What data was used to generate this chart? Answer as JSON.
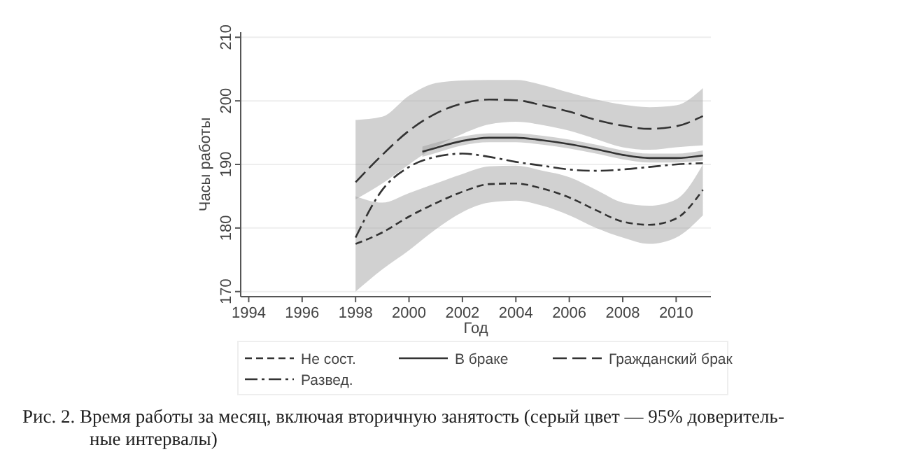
{
  "chart_data": {
    "type": "line",
    "xlabel": "Год",
    "ylabel": "Часы работы",
    "xlim": [
      1993.7,
      2011.3
    ],
    "ylim": [
      169.2,
      210.8
    ],
    "xticks": [
      1994,
      1996,
      1998,
      2000,
      2002,
      2004,
      2006,
      2008,
      2010
    ],
    "yticks": [
      170,
      180,
      190,
      200,
      210
    ],
    "grid": "y",
    "legend": "bottom",
    "marker": "none",
    "series": [
      {
        "name": "Не сост.",
        "color": "#333333",
        "line_style": "dashed",
        "x": [
          1998,
          1999,
          2000,
          2001,
          2002,
          2003,
          2004,
          2005,
          2006,
          2007,
          2008,
          2009,
          2010,
          2011
        ],
        "values": [
          177.5,
          179.3,
          181.8,
          183.9,
          185.7,
          186.9,
          187,
          186.2,
          184.8,
          182.8,
          181,
          180.5,
          181.5,
          186
        ],
        "lower": [
          170,
          173.5,
          176.5,
          179.8,
          182.5,
          184,
          184.3,
          183.5,
          182,
          180,
          178.5,
          177.5,
          178.5,
          182
        ],
        "upper": [
          185,
          184,
          185.5,
          187,
          188.5,
          189.7,
          189.8,
          189,
          188,
          186,
          184,
          183.5,
          184.5,
          190
        ]
      },
      {
        "name": "В браке",
        "color": "#333333",
        "line_style": "solid",
        "x": [
          2000.5,
          2001,
          2002,
          2003,
          2004,
          2005,
          2006,
          2007,
          2008,
          2009,
          2010,
          2011
        ],
        "values": [
          192,
          192.6,
          193.7,
          194.2,
          194.2,
          193.8,
          193.2,
          192.4,
          191.5,
          191,
          191,
          191.4
        ],
        "lower": [
          191.2,
          191.8,
          193,
          193.5,
          193.5,
          193.1,
          192.5,
          191.7,
          190.8,
          190.3,
          190.3,
          190.6
        ],
        "upper": [
          192.8,
          193.4,
          194.4,
          194.9,
          194.9,
          194.5,
          193.9,
          193.1,
          192.2,
          191.7,
          191.7,
          192.2
        ]
      },
      {
        "name": "Гражданский брак",
        "color": "#333333",
        "line_style": "longdash",
        "x": [
          1998,
          1999,
          2000,
          2001,
          2002,
          2003,
          2004,
          2005,
          2006,
          2007,
          2008,
          2009,
          2010,
          2011
        ],
        "values": [
          187.2,
          191.5,
          195.3,
          198,
          199.6,
          200.2,
          200.1,
          199.3,
          198.3,
          197,
          196.1,
          195.6,
          196,
          197.6
        ],
        "lower": [
          184.5,
          187,
          190,
          192.8,
          194.8,
          196.3,
          196.7,
          196.2,
          195.3,
          194,
          192.7,
          192.3,
          192.7,
          193
        ],
        "upper": [
          197,
          197.5,
          200.8,
          202.8,
          203.2,
          203.3,
          203.3,
          202.5,
          201.3,
          200.2,
          199.4,
          199,
          199.3,
          202
        ]
      },
      {
        "name": "Развед.",
        "color": "#333333",
        "line_style": "dashdot",
        "x": [
          1998,
          1999,
          2000,
          2001,
          2002,
          2003,
          2004,
          2005,
          2006,
          2007,
          2008,
          2009,
          2010,
          2011
        ],
        "values": [
          178.5,
          186,
          189.6,
          191.2,
          191.7,
          191.2,
          190.4,
          189.8,
          189.2,
          189,
          189.2,
          189.6,
          190,
          190.2
        ]
      }
    ],
    "annotations": [
      "Рис. 2. Время работы за месяц, включая вторичную занятость (серый цвет — 95% доверитель-",
      "ные интервалы)"
    ]
  }
}
